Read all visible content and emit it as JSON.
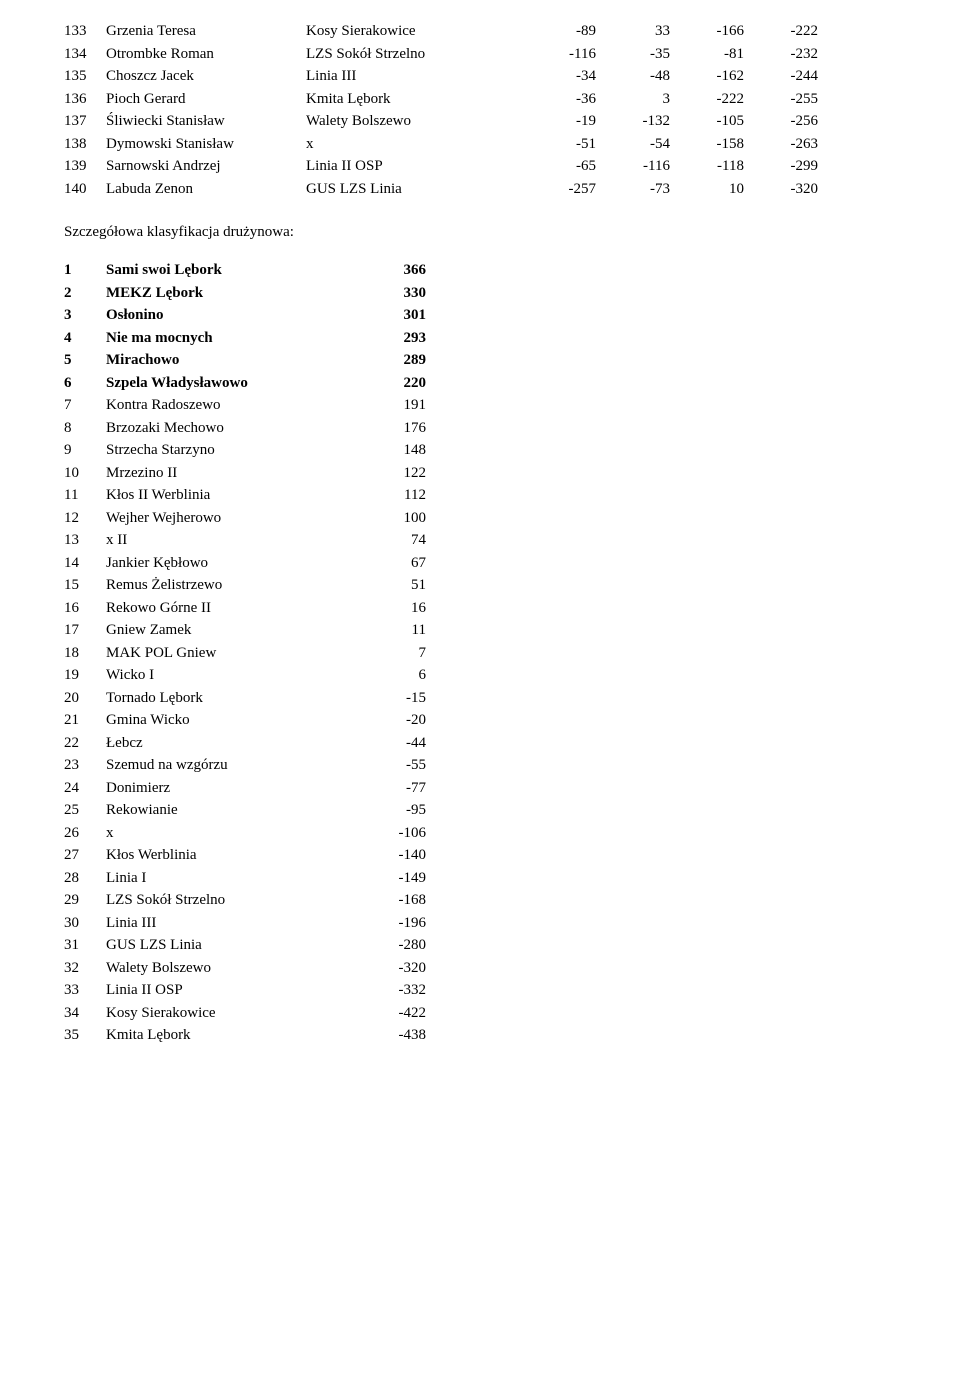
{
  "results_table": {
    "type": "table",
    "columns": [
      "rank",
      "name",
      "team",
      "v1",
      "v2",
      "v3",
      "v4"
    ],
    "rows": [
      {
        "rank": "133",
        "name": "Grzenia Teresa",
        "team": "Kosy Sierakowice",
        "v1": "-89",
        "v2": "33",
        "v3": "-166",
        "v4": "-222"
      },
      {
        "rank": "134",
        "name": "Otrombke Roman",
        "team": "LZS Sokół Strzelno",
        "v1": "-116",
        "v2": "-35",
        "v3": "-81",
        "v4": "-232"
      },
      {
        "rank": "135",
        "name": "Choszcz Jacek",
        "team": "Linia III",
        "v1": "-34",
        "v2": "-48",
        "v3": "-162",
        "v4": "-244"
      },
      {
        "rank": "136",
        "name": "Pioch Gerard",
        "team": "Kmita Lębork",
        "v1": "-36",
        "v2": "3",
        "v3": "-222",
        "v4": "-255"
      },
      {
        "rank": "137",
        "name": "Śliwiecki Stanisław",
        "team": "Walety Bolszewo",
        "v1": "-19",
        "v2": "-132",
        "v3": "-105",
        "v4": "-256"
      },
      {
        "rank": "138",
        "name": "Dymowski Stanisław",
        "team": "x",
        "v1": "-51",
        "v2": "-54",
        "v3": "-158",
        "v4": "-263"
      },
      {
        "rank": "139",
        "name": "Sarnowski Andrzej",
        "team": "Linia II OSP",
        "v1": "-65",
        "v2": "-116",
        "v3": "-118",
        "v4": "-299"
      },
      {
        "rank": "140",
        "name": "Labuda Zenon",
        "team": "GUS LZS Linia",
        "v1": "-257",
        "v2": "-73",
        "v3": "10",
        "v4": "-320"
      }
    ]
  },
  "subtitle": "Szczegółowa klasyfikacja drużynowa:",
  "team_table": {
    "type": "table",
    "columns": [
      "rank",
      "team",
      "score"
    ],
    "bold_top_n": 6,
    "rows": [
      {
        "rank": "1",
        "team": "Sami swoi Lębork",
        "score": "366"
      },
      {
        "rank": "2",
        "team": "MEKZ Lębork",
        "score": "330"
      },
      {
        "rank": "3",
        "team": "Osłonino",
        "score": "301"
      },
      {
        "rank": "4",
        "team": "Nie ma mocnych",
        "score": "293"
      },
      {
        "rank": "5",
        "team": "Mirachowo",
        "score": "289"
      },
      {
        "rank": "6",
        "team": "Szpela Władysławowo",
        "score": "220"
      },
      {
        "rank": "7",
        "team": "Kontra Radoszewo",
        "score": "191"
      },
      {
        "rank": "8",
        "team": "Brzozaki Mechowo",
        "score": "176"
      },
      {
        "rank": "9",
        "team": "Strzecha Starzyno",
        "score": "148"
      },
      {
        "rank": "10",
        "team": "Mrzezino II",
        "score": "122"
      },
      {
        "rank": "11",
        "team": "Kłos II Werblinia",
        "score": "112"
      },
      {
        "rank": "12",
        "team": "Wejher Wejherowo",
        "score": "100"
      },
      {
        "rank": "13",
        "team": "x II",
        "score": "74"
      },
      {
        "rank": "14",
        "team": "Jankier Kębłowo",
        "score": "67"
      },
      {
        "rank": "15",
        "team": "Remus Żelistrzewo",
        "score": "51"
      },
      {
        "rank": "16",
        "team": "Rekowo Górne II",
        "score": "16"
      },
      {
        "rank": "17",
        "team": "Gniew Zamek",
        "score": "11"
      },
      {
        "rank": "18",
        "team": "MAK POL Gniew",
        "score": "7"
      },
      {
        "rank": "19",
        "team": "Wicko I",
        "score": "6"
      },
      {
        "rank": "20",
        "team": "Tornado Lębork",
        "score": "-15"
      },
      {
        "rank": "21",
        "team": "Gmina Wicko",
        "score": "-20"
      },
      {
        "rank": "22",
        "team": "Łebcz",
        "score": "-44"
      },
      {
        "rank": "23",
        "team": "Szemud na wzgórzu",
        "score": "-55"
      },
      {
        "rank": "24",
        "team": "Donimierz",
        "score": "-77"
      },
      {
        "rank": "25",
        "team": "Rekowianie",
        "score": "-95"
      },
      {
        "rank": "26",
        "team": "x",
        "score": "-106"
      },
      {
        "rank": "27",
        "team": "Kłos Werblinia",
        "score": "-140"
      },
      {
        "rank": "28",
        "team": "Linia I",
        "score": "-149"
      },
      {
        "rank": "29",
        "team": "LZS Sokół Strzelno",
        "score": "-168"
      },
      {
        "rank": "30",
        "team": "Linia III",
        "score": "-196"
      },
      {
        "rank": "31",
        "team": "GUS LZS Linia",
        "score": "-280"
      },
      {
        "rank": "32",
        "team": "Walety Bolszewo",
        "score": "-320"
      },
      {
        "rank": "33",
        "team": "Linia II OSP",
        "score": "-332"
      },
      {
        "rank": "34",
        "team": "Kosy Sierakowice",
        "score": "-422"
      },
      {
        "rank": "35",
        "team": "Kmita Lębork",
        "score": "-438"
      }
    ]
  }
}
